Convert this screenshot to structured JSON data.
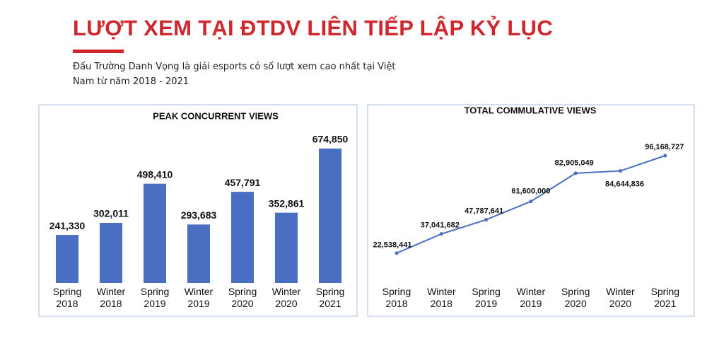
{
  "header": {
    "title": "LƯỢT XEM TẠI ĐTDV LIÊN TIẾP LẬP KỶ LỤC",
    "subtitle": "Đấu Trường Danh Vọng là giải esports có số lượt xem cao nhất tại Việt Nam từ năm 2018 - 2021"
  },
  "chart_data": [
    {
      "type": "bar",
      "title": "PEAK CONCURRENT VIEWS",
      "categories": [
        "Spring 2018",
        "Winter 2018",
        "Spring 2019",
        "Winter 2019",
        "Spring 2020",
        "Winter 2020",
        "Spring 2021"
      ],
      "values": [
        241330,
        302011,
        498410,
        293683,
        457791,
        352861,
        674850
      ],
      "value_labels": [
        "241,330",
        "302,011",
        "498,410",
        "293,683",
        "457,791",
        "352,861",
        "674,850"
      ],
      "color": "#4a6fc2"
    },
    {
      "type": "line",
      "title": "TOTAL COMMULATIVE VIEWS",
      "categories": [
        "Spring 2018",
        "Winter 2018",
        "Spring 2019",
        "Winter 2019",
        "Spring 2020",
        "Winter 2020",
        "Spring 2021"
      ],
      "values": [
        22538441,
        37041682,
        47787641,
        61600000,
        82905049,
        84644836,
        96168727
      ],
      "value_labels": [
        "22,538,441",
        "37,041,682",
        "47,787,641",
        "61,600,000",
        "82,905,049",
        "84,644,836",
        "96,168,727"
      ],
      "color": "#4a6fc2"
    }
  ]
}
